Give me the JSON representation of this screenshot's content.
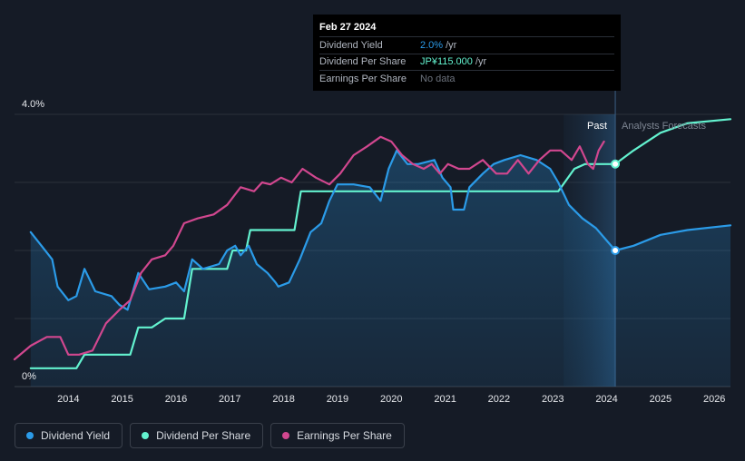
{
  "tooltip": {
    "date": "Feb 27 2024",
    "rows": [
      {
        "label": "Dividend Yield",
        "value": "2.0%",
        "unit": "/yr"
      },
      {
        "label": "Dividend Per Share",
        "value": "JP¥115.000",
        "unit": "/yr"
      },
      {
        "label": "Earnings Per Share",
        "value": "No data",
        "unit": ""
      }
    ]
  },
  "legend": [
    {
      "label": "Dividend Yield",
      "color": "#2b9be8"
    },
    {
      "label": "Dividend Per Share",
      "color": "#63f2cf"
    },
    {
      "label": "Earnings Per Share",
      "color": "#d1478f"
    }
  ],
  "chart_data": {
    "type": "line",
    "title": "",
    "ylim": [
      0,
      4.0
    ],
    "ytick_labels": [
      "0%",
      "4.0%"
    ],
    "xlim": [
      2013.0,
      2026.3
    ],
    "xtick_labels": [
      "2014",
      "2015",
      "2016",
      "2017",
      "2018",
      "2019",
      "2020",
      "2021",
      "2022",
      "2023",
      "2024",
      "2025",
      "2026"
    ],
    "xticks": [
      2014,
      2015,
      2016,
      2017,
      2018,
      2019,
      2020,
      2021,
      2022,
      2023,
      2024,
      2025,
      2026
    ],
    "past_label": "Past",
    "forecast_label": "Analysts Forecasts",
    "forecast_start": 2023.2,
    "current_date": 2024.16,
    "series": [
      {
        "name": "Dividend Yield",
        "color": "#2b9be8",
        "area": true,
        "points": [
          [
            2013.3,
            2.27
          ],
          [
            2013.5,
            2.07
          ],
          [
            2013.7,
            1.87
          ],
          [
            2013.8,
            1.47
          ],
          [
            2014.0,
            1.27
          ],
          [
            2014.15,
            1.33
          ],
          [
            2014.3,
            1.73
          ],
          [
            2014.5,
            1.4
          ],
          [
            2014.8,
            1.33
          ],
          [
            2014.95,
            1.2
          ],
          [
            2015.1,
            1.13
          ],
          [
            2015.3,
            1.67
          ],
          [
            2015.5,
            1.43
          ],
          [
            2015.8,
            1.47
          ],
          [
            2016.0,
            1.53
          ],
          [
            2016.15,
            1.4
          ],
          [
            2016.3,
            1.87
          ],
          [
            2016.5,
            1.73
          ],
          [
            2016.8,
            1.8
          ],
          [
            2016.95,
            2.0
          ],
          [
            2017.1,
            2.07
          ],
          [
            2017.2,
            1.93
          ],
          [
            2017.35,
            2.07
          ],
          [
            2017.5,
            1.8
          ],
          [
            2017.7,
            1.67
          ],
          [
            2017.85,
            1.53
          ],
          [
            2017.9,
            1.47
          ],
          [
            2018.1,
            1.53
          ],
          [
            2018.3,
            1.87
          ],
          [
            2018.5,
            2.27
          ],
          [
            2018.7,
            2.4
          ],
          [
            2018.85,
            2.73
          ],
          [
            2019.0,
            2.97
          ],
          [
            2019.3,
            2.97
          ],
          [
            2019.6,
            2.93
          ],
          [
            2019.8,
            2.73
          ],
          [
            2019.95,
            3.2
          ],
          [
            2020.1,
            3.47
          ],
          [
            2020.3,
            3.27
          ],
          [
            2020.5,
            3.27
          ],
          [
            2020.8,
            3.33
          ],
          [
            2020.95,
            3.07
          ],
          [
            2021.1,
            2.93
          ],
          [
            2021.15,
            2.6
          ],
          [
            2021.35,
            2.6
          ],
          [
            2021.45,
            2.93
          ],
          [
            2021.7,
            3.13
          ],
          [
            2021.9,
            3.27
          ],
          [
            2022.1,
            3.33
          ],
          [
            2022.4,
            3.4
          ],
          [
            2022.7,
            3.33
          ],
          [
            2022.95,
            3.2
          ],
          [
            2023.1,
            3.0
          ],
          [
            2023.3,
            2.67
          ],
          [
            2023.55,
            2.47
          ],
          [
            2023.8,
            2.33
          ],
          [
            2024.16,
            2.0
          ],
          [
            2024.5,
            2.07
          ],
          [
            2025.0,
            2.23
          ],
          [
            2025.5,
            2.3
          ],
          [
            2026.3,
            2.37
          ]
        ]
      },
      {
        "name": "Dividend Per Share",
        "color": "#63f2cf",
        "area": false,
        "points": [
          [
            2013.3,
            0.27
          ],
          [
            2014.15,
            0.27
          ],
          [
            2014.3,
            0.47
          ],
          [
            2015.15,
            0.47
          ],
          [
            2015.3,
            0.87
          ],
          [
            2015.55,
            0.87
          ],
          [
            2015.8,
            1.0
          ],
          [
            2016.15,
            1.0
          ],
          [
            2016.3,
            1.73
          ],
          [
            2016.5,
            1.73
          ],
          [
            2016.95,
            1.73
          ],
          [
            2017.05,
            2.0
          ],
          [
            2017.3,
            2.0
          ],
          [
            2017.38,
            2.3
          ],
          [
            2018.2,
            2.3
          ],
          [
            2018.32,
            2.87
          ],
          [
            2019.0,
            2.87
          ],
          [
            2019.5,
            2.87
          ],
          [
            2020.0,
            2.87
          ],
          [
            2021.0,
            2.87
          ],
          [
            2022.0,
            2.87
          ],
          [
            2023.0,
            2.87
          ],
          [
            2023.1,
            2.87
          ],
          [
            2023.4,
            3.2
          ],
          [
            2023.6,
            3.27
          ],
          [
            2024.16,
            3.27
          ],
          [
            2024.5,
            3.47
          ],
          [
            2025.0,
            3.73
          ],
          [
            2025.5,
            3.87
          ],
          [
            2026.3,
            3.93
          ]
        ]
      },
      {
        "name": "Earnings Per Share",
        "color": "#d1478f",
        "area": false,
        "points": [
          [
            2013.0,
            0.4
          ],
          [
            2013.3,
            0.6
          ],
          [
            2013.6,
            0.73
          ],
          [
            2013.85,
            0.73
          ],
          [
            2014.0,
            0.47
          ],
          [
            2014.2,
            0.47
          ],
          [
            2014.45,
            0.53
          ],
          [
            2014.7,
            0.93
          ],
          [
            2014.95,
            1.13
          ],
          [
            2015.15,
            1.27
          ],
          [
            2015.35,
            1.67
          ],
          [
            2015.55,
            1.87
          ],
          [
            2015.8,
            1.93
          ],
          [
            2015.95,
            2.07
          ],
          [
            2016.15,
            2.4
          ],
          [
            2016.4,
            2.47
          ],
          [
            2016.7,
            2.53
          ],
          [
            2016.95,
            2.67
          ],
          [
            2017.2,
            2.93
          ],
          [
            2017.45,
            2.87
          ],
          [
            2017.6,
            3.0
          ],
          [
            2017.75,
            2.97
          ],
          [
            2017.95,
            3.07
          ],
          [
            2018.15,
            3.0
          ],
          [
            2018.35,
            3.2
          ],
          [
            2018.6,
            3.07
          ],
          [
            2018.85,
            2.97
          ],
          [
            2019.05,
            3.13
          ],
          [
            2019.3,
            3.4
          ],
          [
            2019.55,
            3.53
          ],
          [
            2019.8,
            3.67
          ],
          [
            2020.0,
            3.6
          ],
          [
            2020.2,
            3.4
          ],
          [
            2020.4,
            3.27
          ],
          [
            2020.6,
            3.2
          ],
          [
            2020.75,
            3.27
          ],
          [
            2020.9,
            3.13
          ],
          [
            2021.05,
            3.27
          ],
          [
            2021.25,
            3.2
          ],
          [
            2021.45,
            3.2
          ],
          [
            2021.7,
            3.33
          ],
          [
            2021.95,
            3.13
          ],
          [
            2022.15,
            3.13
          ],
          [
            2022.35,
            3.33
          ],
          [
            2022.55,
            3.13
          ],
          [
            2022.75,
            3.33
          ],
          [
            2022.95,
            3.47
          ],
          [
            2023.15,
            3.47
          ],
          [
            2023.35,
            3.33
          ],
          [
            2023.5,
            3.53
          ],
          [
            2023.65,
            3.27
          ],
          [
            2023.75,
            3.2
          ],
          [
            2023.85,
            3.47
          ],
          [
            2023.95,
            3.6
          ]
        ]
      }
    ],
    "markers": [
      {
        "series": "Dividend Yield",
        "x": 2024.16,
        "y": 2.0
      },
      {
        "series": "Dividend Per Share",
        "x": 2024.16,
        "y": 3.27
      }
    ]
  }
}
